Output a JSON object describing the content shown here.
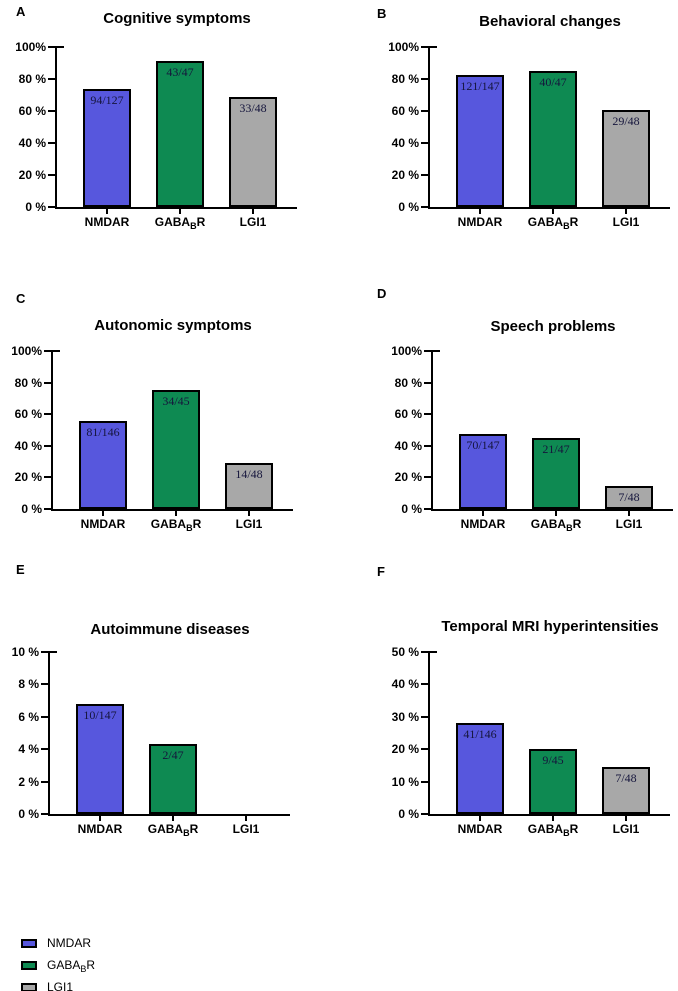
{
  "styles": {
    "background": "#ffffff",
    "axis_color": "#000000",
    "bar_border_color": "#000000",
    "bar_label_color": "#15153c",
    "bar_colors": [
      "#5757dd",
      "#0e8a52",
      "#a8a8a8"
    ]
  },
  "categories_display": [
    {
      "text": "NMDAR"
    },
    {
      "text": "GABA",
      "sub": "B",
      "post": "R"
    },
    {
      "text": "LGI1"
    }
  ],
  "chart_data": [
    {
      "type": "bar",
      "panel_label": "A",
      "title": "Cognitive symptoms",
      "categories": [
        "NMDAR",
        "GABA(B)R",
        "LGI1"
      ],
      "values": [
        74.0,
        91.5,
        68.8
      ],
      "bar_labels": [
        "94/127",
        "43/47",
        "33/48"
      ],
      "ylim": [
        0,
        100
      ],
      "grid": false,
      "legend_position": "none",
      "yticks": [
        {
          "value": 0,
          "label": "0 %"
        },
        {
          "value": 20,
          "label": "20 %"
        },
        {
          "value": 40,
          "label": "40 %"
        },
        {
          "value": 60,
          "label": "60 %"
        },
        {
          "value": 80,
          "label": "80 %"
        },
        {
          "value": 100,
          "label": "100%"
        }
      ]
    },
    {
      "type": "bar",
      "panel_label": "B",
      "title": "Behavioral changes",
      "categories": [
        "NMDAR",
        "GABA(B)R",
        "LGI1"
      ],
      "values": [
        82.3,
        85.1,
        60.4
      ],
      "bar_labels": [
        "121/147",
        "40/47",
        "29/48"
      ],
      "ylim": [
        0,
        100
      ],
      "grid": false,
      "legend_position": "none",
      "yticks": [
        {
          "value": 0,
          "label": "0 %"
        },
        {
          "value": 20,
          "label": "20 %"
        },
        {
          "value": 40,
          "label": "40 %"
        },
        {
          "value": 60,
          "label": "60 %"
        },
        {
          "value": 80,
          "label": "80 %"
        },
        {
          "value": 100,
          "label": "100%"
        }
      ]
    },
    {
      "type": "bar",
      "panel_label": "C",
      "title": "Autonomic symptoms",
      "categories": [
        "NMDAR",
        "GABA(B)R",
        "LGI1"
      ],
      "values": [
        55.5,
        75.6,
        29.2
      ],
      "bar_labels": [
        "81/146",
        "34/45",
        "14/48"
      ],
      "ylim": [
        0,
        100
      ],
      "grid": false,
      "legend_position": "none",
      "yticks": [
        {
          "value": 0,
          "label": "0 %"
        },
        {
          "value": 20,
          "label": "20 %"
        },
        {
          "value": 40,
          "label": "40 %"
        },
        {
          "value": 60,
          "label": "60 %"
        },
        {
          "value": 80,
          "label": "80 %"
        },
        {
          "value": 100,
          "label": "100%"
        }
      ]
    },
    {
      "type": "bar",
      "panel_label": "D",
      "title": "Speech problems",
      "categories": [
        "NMDAR",
        "GABA(B)R",
        "LGI1"
      ],
      "values": [
        47.6,
        44.7,
        14.6
      ],
      "bar_labels": [
        "70/147",
        "21/47",
        "7/48"
      ],
      "ylim": [
        0,
        100
      ],
      "grid": false,
      "legend_position": "none",
      "yticks": [
        {
          "value": 0,
          "label": "0 %"
        },
        {
          "value": 20,
          "label": "20 %"
        },
        {
          "value": 40,
          "label": "40 %"
        },
        {
          "value": 60,
          "label": "60 %"
        },
        {
          "value": 80,
          "label": "80 %"
        },
        {
          "value": 100,
          "label": "100%"
        }
      ]
    },
    {
      "type": "bar",
      "panel_label": "E",
      "title": "Autoimmune diseases",
      "categories": [
        "NMDAR",
        "GABA(B)R",
        "LGI1"
      ],
      "values": [
        6.8,
        4.3,
        0
      ],
      "bar_labels": [
        "10/147",
        "2/47",
        ""
      ],
      "ylim": [
        0,
        10
      ],
      "grid": false,
      "legend_position": "none",
      "yticks": [
        {
          "value": 0,
          "label": "0 %"
        },
        {
          "value": 2,
          "label": "2 %"
        },
        {
          "value": 4,
          "label": "4 %"
        },
        {
          "value": 6,
          "label": "6 %"
        },
        {
          "value": 8,
          "label": "8 %"
        },
        {
          "value": 10,
          "label": "10 %"
        }
      ]
    },
    {
      "type": "bar",
      "panel_label": "F",
      "title": "Temporal MRI hyperintensities",
      "categories": [
        "NMDAR",
        "GABA(B)R",
        "LGI1"
      ],
      "values": [
        28.1,
        20.0,
        14.6
      ],
      "bar_labels": [
        "41/146",
        "9/45",
        "7/48"
      ],
      "ylim": [
        0,
        50
      ],
      "grid": false,
      "legend_position": "none",
      "yticks": [
        {
          "value": 0,
          "label": "0 %"
        },
        {
          "value": 10,
          "label": "10 %"
        },
        {
          "value": 20,
          "label": "20 %"
        },
        {
          "value": 30,
          "label": "30 %"
        },
        {
          "value": 40,
          "label": "40 %"
        },
        {
          "value": 50,
          "label": "50 %"
        }
      ]
    }
  ],
  "legend": {
    "items": [
      {
        "text": "NMDAR",
        "color": "#5757dd"
      },
      {
        "text": "GABA",
        "sub": "B",
        "post": "R",
        "color": "#0e8a52"
      },
      {
        "text": "LGI1",
        "color": "#a8a8a8"
      }
    ]
  }
}
